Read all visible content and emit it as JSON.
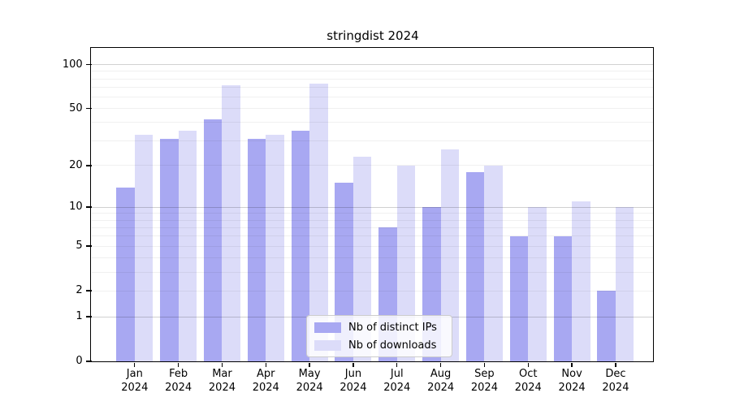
{
  "title": "stringdist 2024",
  "chart_data": {
    "type": "bar",
    "title": "stringdist 2024",
    "categories": [
      "Jan 2024",
      "Feb 2024",
      "Mar 2024",
      "Apr 2024",
      "May 2024",
      "Jun 2024",
      "Jul 2024",
      "Aug 2024",
      "Sep 2024",
      "Oct 2024",
      "Nov 2024",
      "Dec 2024"
    ],
    "series": [
      {
        "name": "Nb of distinct IPs",
        "color": "#a8a8f2",
        "values": [
          14,
          31,
          42,
          31,
          35,
          15,
          7,
          10,
          18,
          6,
          6,
          2
        ]
      },
      {
        "name": "Nb of downloads",
        "color": "#dcdcf9",
        "values": [
          33,
          35,
          72,
          33,
          74,
          23,
          20,
          26,
          20,
          10,
          11,
          10
        ]
      }
    ],
    "yscale": "log1p",
    "ylim": [
      0,
      130
    ],
    "y_ticks": [
      100,
      50,
      20,
      10,
      5,
      2,
      1,
      0
    ],
    "y_major_gridlines": [
      1,
      10,
      100
    ],
    "y_minor_gridlines": [
      2,
      3,
      4,
      5,
      6,
      7,
      8,
      9,
      20,
      30,
      40,
      50,
      60,
      70,
      80,
      90
    ],
    "xlabel": "",
    "ylabel": "",
    "grid": true,
    "legend_position": "lower center"
  },
  "colors": {
    "axis": "#000000",
    "grid_major": "rgba(0,0,0,0.18)",
    "grid_minor": "rgba(0,0,0,0.06)"
  }
}
